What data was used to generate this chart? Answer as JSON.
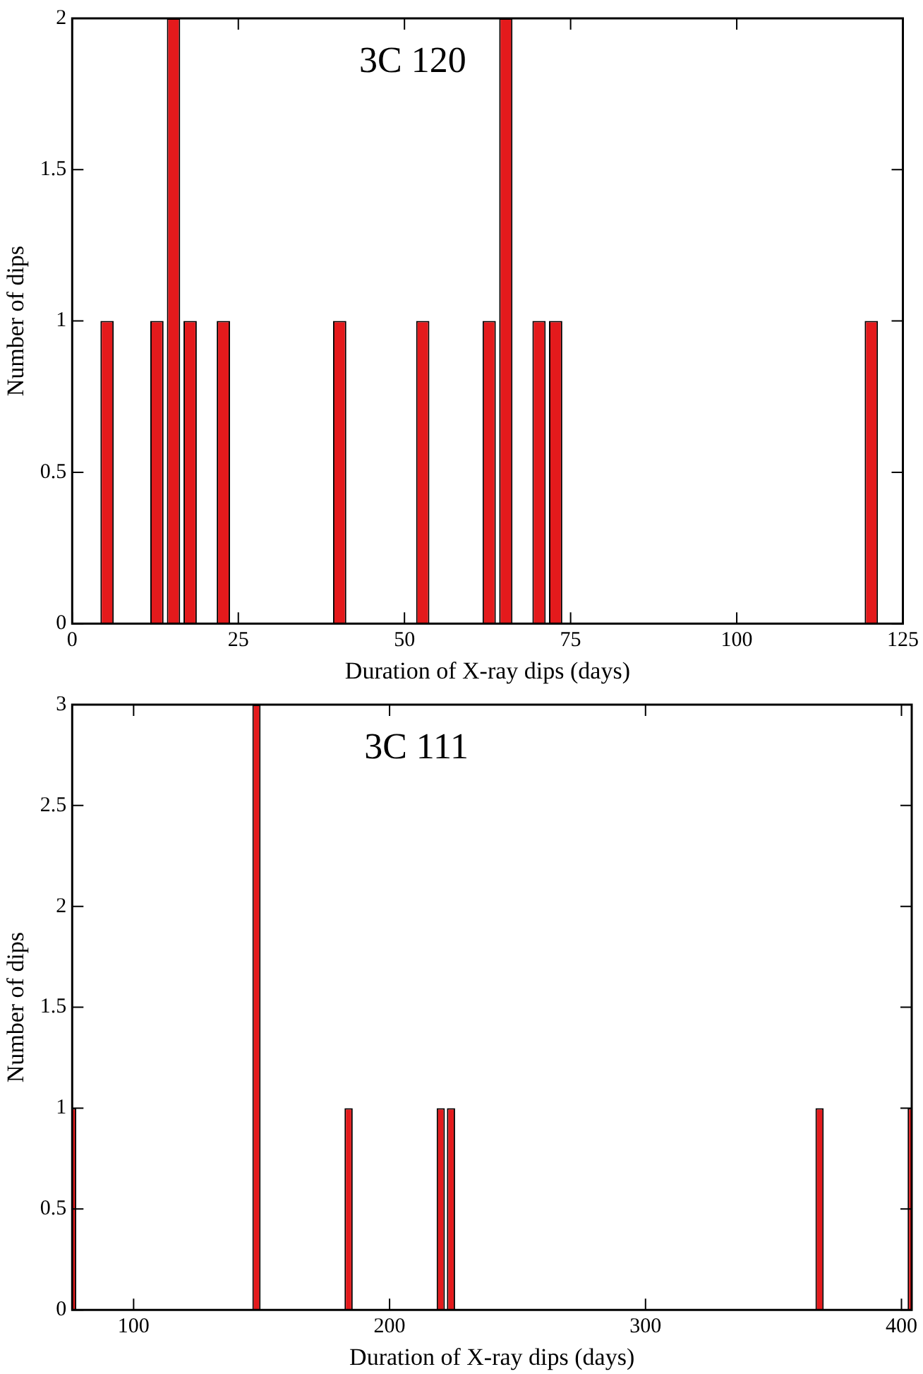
{
  "chart_data": [
    {
      "type": "histogram",
      "title": "3C 120",
      "xlabel": "Duration of X-ray dips (days)",
      "ylabel": "Number of dips",
      "color": "#e41a1c",
      "bins": [
        4,
        6.5,
        9,
        11.5,
        14,
        16.5,
        19,
        21.5,
        24,
        26.5,
        29,
        31.5,
        34,
        36.5,
        39,
        41.5,
        44,
        46.5,
        49,
        51.5,
        54,
        56.5,
        59,
        61.5,
        64,
        66.5,
        69,
        71.5,
        74,
        76.5,
        79,
        81.5,
        84,
        86.5,
        89,
        91.5,
        94,
        96.5,
        99,
        101.5,
        104,
        106.5,
        109,
        111.5,
        114,
        116.5,
        119,
        121.5
      ],
      "values": [
        1,
        0,
        0,
        1,
        2,
        1,
        0,
        1,
        0,
        0,
        0,
        0,
        0,
        0,
        1,
        0,
        0,
        0,
        0,
        1,
        0,
        0,
        0,
        1,
        2,
        0,
        1,
        1,
        0,
        0,
        0,
        0,
        0,
        0,
        0,
        0,
        0,
        0,
        0,
        0,
        0,
        0,
        0,
        0,
        0,
        0,
        1
      ],
      "xlim": [
        0,
        125
      ],
      "xticks": [
        0,
        25,
        50,
        75,
        100,
        125
      ],
      "ylim": [
        0,
        2
      ],
      "yticks": [
        0,
        0.5,
        1,
        1.5,
        2
      ]
    },
    {
      "type": "histogram",
      "title": "3C 111",
      "xlabel": "Duration of X-ray dips (days)",
      "ylabel": "Number of dips",
      "color": "#e41a1c",
      "bins": [
        74,
        78,
        82,
        86,
        90,
        94,
        98,
        102,
        106,
        110,
        114,
        118,
        122,
        126,
        130,
        134,
        138,
        142,
        146,
        150,
        154,
        158,
        162,
        166,
        170,
        174,
        178,
        182,
        186,
        190,
        194,
        198,
        202,
        206,
        210,
        214,
        218,
        222,
        226,
        230,
        234,
        238,
        242,
        246,
        250,
        254,
        258,
        262,
        266,
        270,
        274,
        278,
        282,
        286,
        290,
        294,
        298,
        302,
        306,
        310,
        314,
        318,
        322,
        326,
        330,
        334,
        338,
        342,
        346,
        350,
        354,
        358,
        362,
        366,
        370,
        374,
        378,
        382,
        386,
        390,
        394,
        398,
        402,
        406
      ],
      "values": [
        1,
        0,
        0,
        0,
        0,
        0,
        0,
        0,
        0,
        0,
        0,
        0,
        0,
        0,
        0,
        0,
        0,
        0,
        3,
        0,
        0,
        0,
        0,
        0,
        0,
        0,
        0,
        1,
        0,
        0,
        0,
        0,
        0,
        0,
        0,
        0,
        1,
        1,
        0,
        0,
        0,
        0,
        0,
        0,
        0,
        0,
        0,
        0,
        0,
        0,
        0,
        0,
        0,
        0,
        0,
        0,
        0,
        0,
        0,
        0,
        0,
        0,
        0,
        0,
        0,
        0,
        0,
        0,
        0,
        0,
        0,
        0,
        0,
        1,
        0,
        0,
        0,
        0,
        0,
        0,
        0,
        0,
        1
      ],
      "xlim": [
        76,
        404
      ],
      "xticks": [
        100,
        200,
        300,
        400
      ],
      "ylim": [
        0,
        3
      ],
      "yticks": [
        0,
        0.5,
        1,
        1.5,
        2,
        2.5,
        3
      ]
    }
  ]
}
